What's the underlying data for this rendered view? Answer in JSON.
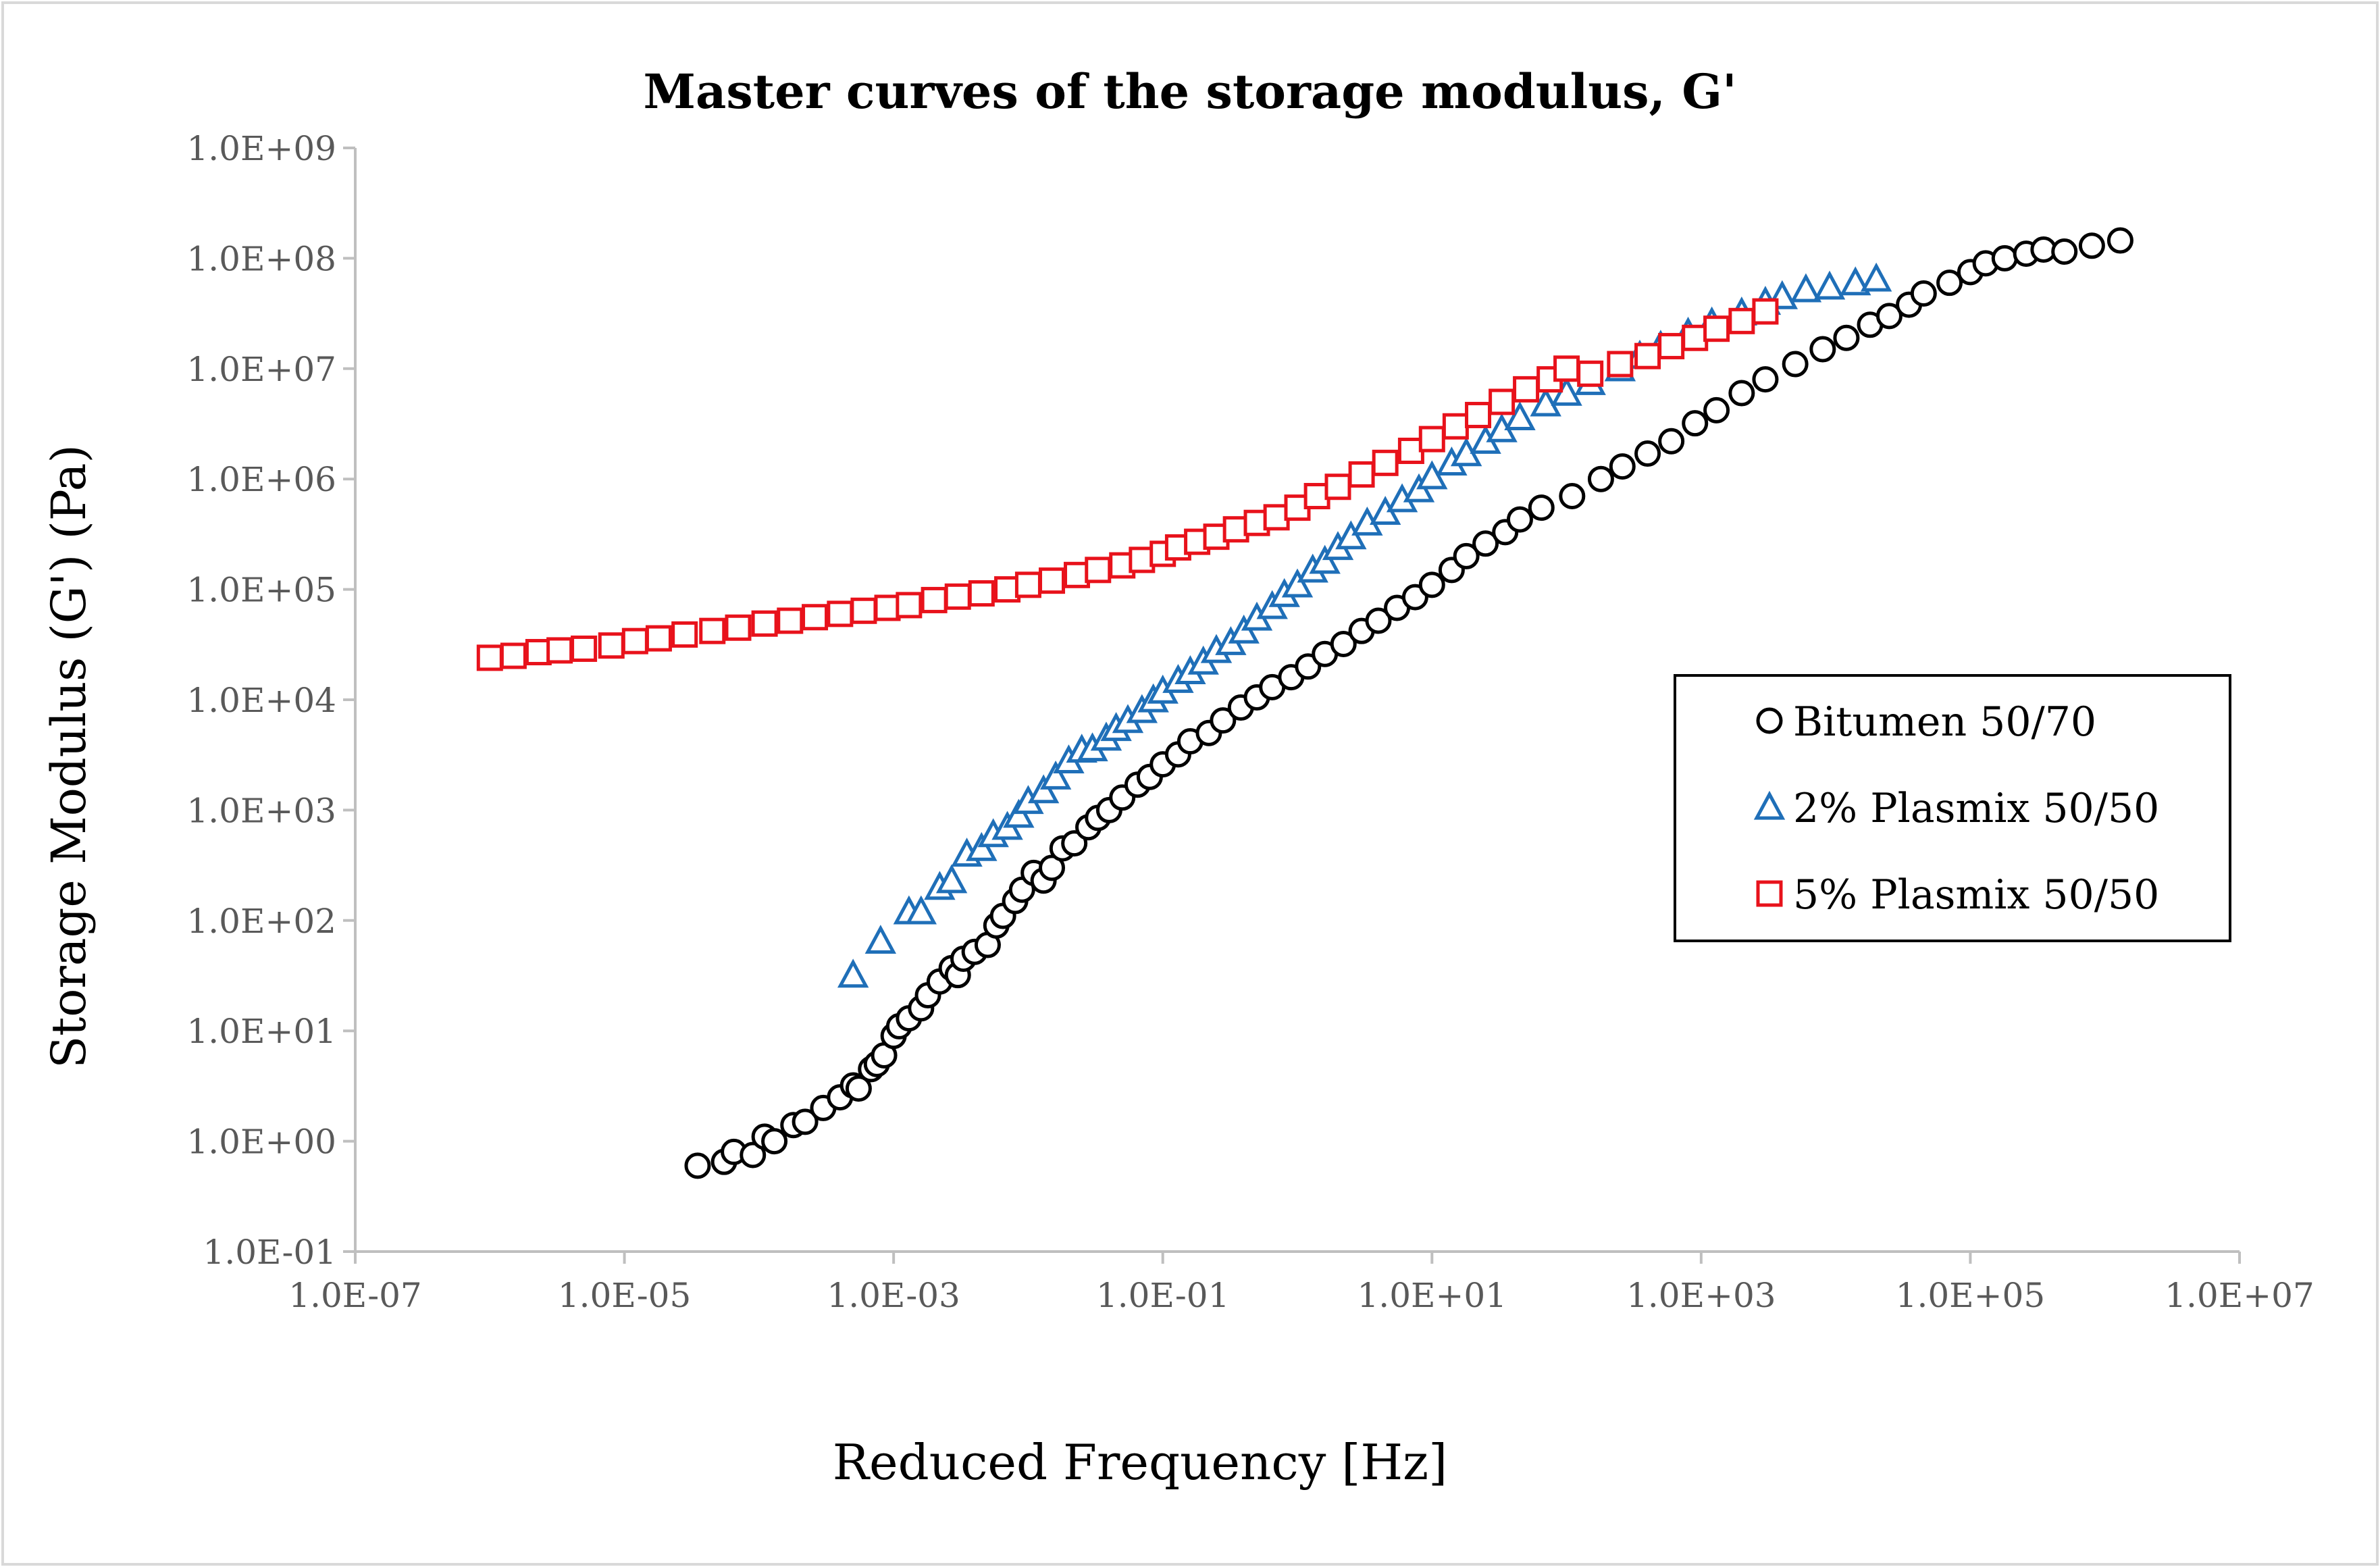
{
  "chart_data": {
    "type": "scatter",
    "title": "Master curves of the storage modulus, G'",
    "xlabel": "Reduced Frequency [Hz]",
    "ylabel": "Storage Modulus (G') (Pa)",
    "xscale": "log",
    "yscale": "log",
    "xlim": [
      1e-07,
      10000000.0
    ],
    "ylim": [
      0.1,
      1000000000.0
    ],
    "x_ticks": [
      "1.0E-07",
      "1.0E-05",
      "1.0E-03",
      "1.0E-01",
      "1.0E+01",
      "1.0E+03",
      "1.0E+05",
      "1.0E+07"
    ],
    "y_ticks": [
      "1.0E-01",
      "1.0E+00",
      "1.0E+01",
      "1.0E+02",
      "1.0E+03",
      "1.0E+04",
      "1.0E+05",
      "1.0E+06",
      "1.0E+07",
      "1.0E+08",
      "1.0E+09"
    ],
    "grid": false,
    "legend_position": "right",
    "series": [
      {
        "name": "Bitumen 50/70",
        "marker": "circle",
        "color": "#000000",
        "x": [
          3.5e-05,
          5.5e-05,
          6.5e-05,
          9e-05,
          0.00011,
          0.00013,
          0.00018,
          0.00022,
          0.0003,
          0.0004,
          0.0005,
          0.00055,
          0.00068,
          0.00075,
          0.00085,
          0.001,
          0.0011,
          0.0013,
          0.0016,
          0.0018,
          0.0022,
          0.0027,
          0.003,
          0.0033,
          0.004,
          0.005,
          0.0058,
          0.0065,
          0.008,
          0.009,
          0.011,
          0.013,
          0.015,
          0.018,
          0.022,
          0.028,
          0.033,
          0.04,
          0.05,
          0.065,
          0.08,
          0.1,
          0.13,
          0.16,
          0.22,
          0.28,
          0.38,
          0.5,
          0.65,
          0.9,
          1.2,
          1.6,
          2.2,
          3,
          4,
          5.5,
          7.5,
          10,
          14,
          18,
          25,
          35,
          45,
          65,
          110,
          180,
          260,
          400,
          600,
          900,
          1300,
          2000,
          3000,
          5000,
          8000,
          12000.0,
          18000.0,
          25000.0,
          35000.0,
          45000.0,
          70000.0,
          100000.0,
          130000.0,
          180000.0,
          260000.0,
          350000.0,
          500000.0,
          800000.0,
          1300000.0
        ],
        "y": [
          0.6,
          0.65,
          0.8,
          0.75,
          1.1,
          1.0,
          1.4,
          1.5,
          2.0,
          2.5,
          3.2,
          3.0,
          4.5,
          5.0,
          6.0,
          9.0,
          11,
          13,
          16,
          21,
          28,
          37,
          32,
          45,
          52,
          60,
          90,
          110,
          150,
          190,
          270,
          230,
          300,
          450,
          500,
          700,
          850,
          1000,
          1300,
          1700,
          2000,
          2600,
          3200,
          4200,
          5000,
          6500,
          8500,
          10500,
          13000,
          16000,
          20000,
          26000,
          32000,
          42000,
          52000,
          68000,
          85000,
          110000,
          150000,
          200000,
          260000,
          330000,
          430000,
          550000,
          700000,
          1000000,
          1300000,
          1700000,
          2200000,
          3200000,
          4200000,
          6000000,
          8000000,
          11000000,
          15000000,
          19000000,
          25000000,
          30000000,
          38000000,
          48000000,
          60000000,
          75000000,
          90000000,
          100000000,
          110000000,
          120000000,
          115000000,
          130000000,
          145000000
        ]
      },
      {
        "name": "2% Plasmix 50/50",
        "marker": "triangle",
        "color": "#1f6fb8",
        "x": [
          0.0005,
          0.0008,
          0.0013,
          0.0016,
          0.0022,
          0.0027,
          0.0035,
          0.0045,
          0.0055,
          0.007,
          0.0085,
          0.01,
          0.013,
          0.016,
          0.02,
          0.025,
          0.03,
          0.038,
          0.045,
          0.055,
          0.07,
          0.085,
          0.1,
          0.13,
          0.16,
          0.2,
          0.25,
          0.32,
          0.4,
          0.5,
          0.65,
          0.8,
          1.0,
          1.3,
          1.6,
          2,
          2.5,
          3.3,
          4.5,
          6,
          8,
          10,
          14,
          18,
          25,
          33,
          45,
          70,
          100,
          150,
          250,
          350,
          500,
          800,
          1200,
          2000,
          3000,
          4000,
          6000,
          9000,
          14000.0,
          20000.0
        ],
        "y": [
          32,
          65,
          120,
          120,
          200,
          230,
          400,
          450,
          600,
          700,
          900,
          1200,
          1500,
          2000,
          2800,
          3500,
          3600,
          4500,
          5500,
          6500,
          8000,
          10000,
          12000,
          15000,
          18000,
          22000,
          28000,
          33000,
          42000,
          55000,
          70000,
          90000,
          110000,
          150000,
          180000,
          240000,
          300000,
          400000,
          500000,
          650000,
          800000,
          1050000,
          1400000,
          1700000,
          2200000,
          2800000,
          3600000,
          4800000,
          6000000,
          7500000,
          10000000,
          13000000,
          16000000,
          21000000,
          26000000,
          32000000,
          40000000,
          45000000,
          52000000,
          55000000,
          60000000,
          65000000
        ]
      },
      {
        "name": "5% Plasmix 50/50",
        "marker": "square",
        "color": "#e8121b",
        "x": [
          1e-06,
          1.5e-06,
          2.3e-06,
          3.3e-06,
          5e-06,
          8e-06,
          1.2e-05,
          1.8e-05,
          2.8e-05,
          4.5e-05,
          7e-05,
          0.00011,
          0.00017,
          0.00026,
          0.0004,
          0.0006,
          0.0009,
          0.0013,
          0.002,
          0.003,
          0.0045,
          0.007,
          0.01,
          0.015,
          0.023,
          0.033,
          0.05,
          0.07,
          0.1,
          0.13,
          0.18,
          0.25,
          0.35,
          0.5,
          0.7,
          1,
          1.4,
          2,
          3,
          4.5,
          7,
          10,
          15,
          22,
          33,
          50,
          75,
          100,
          150,
          250,
          400,
          600,
          900,
          1300,
          2000,
          3000
        ],
        "y": [
          24000,
          25000,
          27000,
          28000,
          29000,
          31000,
          34000,
          36000,
          39000,
          42000,
          45000,
          49000,
          52000,
          56000,
          60000,
          64000,
          68000,
          72000,
          80000,
          86000,
          92000,
          100000,
          110000,
          120000,
          135000,
          150000,
          165000,
          185000,
          210000,
          240000,
          270000,
          300000,
          350000,
          400000,
          450000,
          550000,
          700000,
          850000,
          1100000,
          1400000,
          1800000,
          2300000,
          3000000,
          3800000,
          5000000,
          6500000,
          8000000,
          10000000,
          9000000,
          11000000,
          13000000,
          16000000,
          19000000,
          23000000,
          27000000,
          33000000
        ]
      }
    ]
  }
}
